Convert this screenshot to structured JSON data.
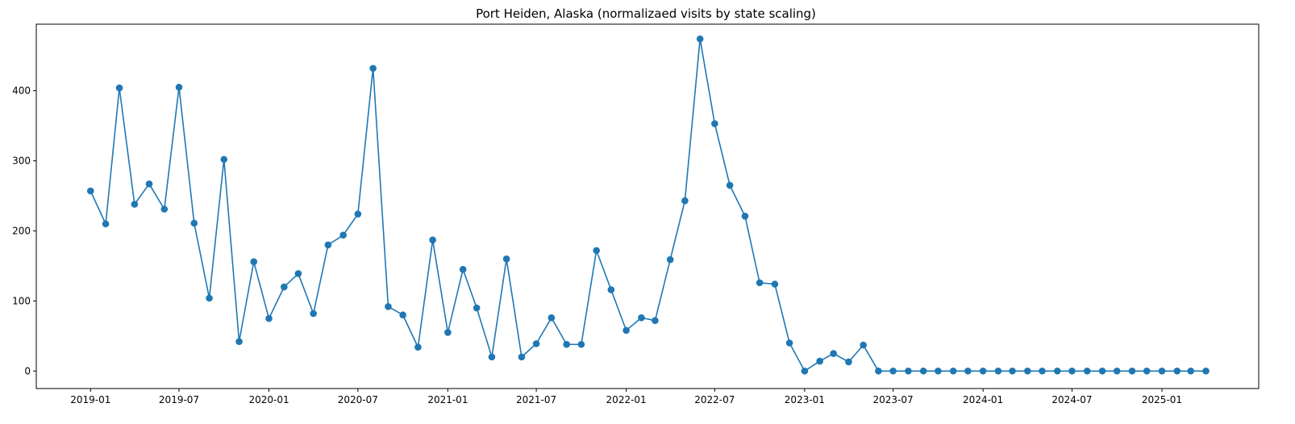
{
  "chart_data": {
    "type": "line",
    "title": "Port Heiden, Alaska (normalizaed visits by state scaling)",
    "xlabel": "",
    "ylabel": "",
    "ylim": [
      -25,
      495
    ],
    "xlim": [
      "2018-09-12",
      "2025-07-18"
    ],
    "x_ticks": [
      "2019-01",
      "2019-07",
      "2020-01",
      "2020-07",
      "2021-01",
      "2021-07",
      "2022-01",
      "2022-07",
      "2023-01",
      "2023-07",
      "2024-01",
      "2024-07",
      "2025-01"
    ],
    "y_ticks": [
      0,
      100,
      200,
      300,
      400
    ],
    "grid": false,
    "legend": "none",
    "color": "#1f77b4",
    "x": [
      "2019-01",
      "2019-02",
      "2019-03",
      "2019-04",
      "2019-05",
      "2019-06",
      "2019-07",
      "2019-08",
      "2019-09",
      "2019-10",
      "2019-11",
      "2019-12",
      "2020-01",
      "2020-02",
      "2020-03",
      "2020-04",
      "2020-05",
      "2020-06",
      "2020-07",
      "2020-08",
      "2020-09",
      "2020-10",
      "2020-11",
      "2020-12",
      "2021-01",
      "2021-02",
      "2021-03",
      "2021-04",
      "2021-05",
      "2021-06",
      "2021-07",
      "2021-08",
      "2021-09",
      "2021-10",
      "2021-11",
      "2021-12",
      "2022-01",
      "2022-02",
      "2022-03",
      "2022-04",
      "2022-05",
      "2022-06",
      "2022-07",
      "2022-08",
      "2022-09",
      "2022-10",
      "2022-11",
      "2022-12",
      "2023-01",
      "2023-02",
      "2023-03",
      "2023-04",
      "2023-05",
      "2023-06",
      "2023-07",
      "2023-08",
      "2023-09",
      "2023-10",
      "2023-11",
      "2023-12",
      "2024-01",
      "2024-02",
      "2024-03",
      "2024-04",
      "2024-05",
      "2024-06",
      "2024-07",
      "2024-08",
      "2024-09",
      "2024-10",
      "2024-11",
      "2024-12",
      "2025-01",
      "2025-02",
      "2025-03",
      "2025-04"
    ],
    "series": [
      {
        "values": [
          257,
          210,
          404,
          238,
          267,
          231,
          405,
          211,
          104,
          302,
          42,
          156,
          75,
          120,
          139,
          82,
          180,
          194,
          224,
          432,
          92,
          80,
          34,
          187,
          55,
          145,
          90,
          20,
          160,
          20,
          39,
          76,
          38,
          38,
          172,
          116,
          58,
          76,
          72,
          159,
          243,
          474,
          353,
          265,
          221,
          126,
          124,
          40,
          0,
          14,
          25,
          13,
          37,
          0,
          0,
          0,
          0,
          0,
          0,
          0,
          0,
          0,
          0,
          0,
          0,
          0,
          0,
          0,
          0,
          0,
          0,
          0,
          0,
          0,
          0,
          0
        ]
      }
    ]
  }
}
